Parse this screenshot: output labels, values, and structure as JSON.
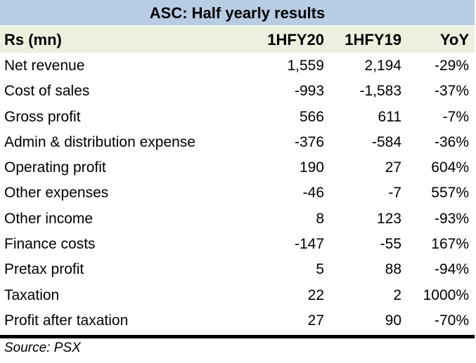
{
  "title": "ASC: Half yearly results",
  "header": {
    "label": "Rs (mn)",
    "col1": "1HFY20",
    "col2": "1HFY19",
    "col3": "YoY"
  },
  "rows": [
    {
      "label": "Net revenue",
      "v1": "1,559",
      "v2": "2,194",
      "yoy": "-29%"
    },
    {
      "label": "Cost of sales",
      "v1": "-993",
      "v2": "-1,583",
      "yoy": "-37%"
    },
    {
      "label": "Gross profit",
      "v1": "566",
      "v2": "611",
      "yoy": "-7%"
    },
    {
      "label": "Admin & distribution expense",
      "v1": "-376",
      "v2": "-584",
      "yoy": "-36%"
    },
    {
      "label": "Operating profit",
      "v1": "190",
      "v2": "27",
      "yoy": "604%"
    },
    {
      "label": "Other expenses",
      "v1": "-46",
      "v2": "-7",
      "yoy": "557%"
    },
    {
      "label": "Other income",
      "v1": "8",
      "v2": "123",
      "yoy": "-93%"
    },
    {
      "label": "Finance costs",
      "v1": "-147",
      "v2": "-55",
      "yoy": "167%"
    },
    {
      "label": "Pretax profit",
      "v1": "5",
      "v2": "88",
      "yoy": "-94%"
    },
    {
      "label": "Taxation",
      "v1": "22",
      "v2": "2",
      "yoy": "1000%"
    },
    {
      "label": "Profit after taxation",
      "v1": "27",
      "v2": "90",
      "yoy": "-70%"
    }
  ],
  "source": "Source: PSX",
  "colors": {
    "title_bg": "#b8cce4",
    "header_bg": "#ebf1de"
  }
}
